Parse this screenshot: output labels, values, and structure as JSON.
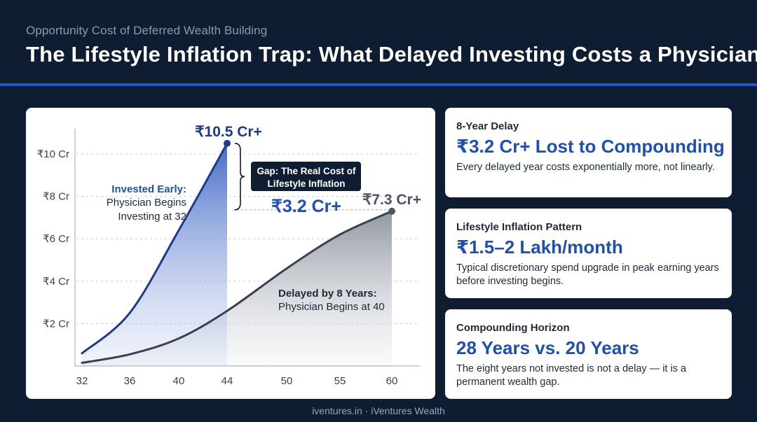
{
  "header": {
    "kicker": "Opportunity Cost of Deferred Wealth Building",
    "title": "The Lifestyle Inflation Trap: What Delayed Investing Costs a Physician"
  },
  "chart_data": {
    "type": "area",
    "x_ticks": [
      "32",
      "36",
      "40",
      "44",
      "50",
      "55",
      "60"
    ],
    "y_ticks": [
      {
        "value": 10,
        "label": "₹10 Cr"
      },
      {
        "value": 8,
        "label": "₹8 Cr"
      },
      {
        "value": 6,
        "label": "₹6 Cr"
      },
      {
        "value": 4,
        "label": "₹4 Cr"
      },
      {
        "value": 2,
        "label": "₹2 Cr"
      }
    ],
    "series": [
      {
        "label_title": "Invested Early:",
        "label_lines": [
          "Physician Begins",
          "Investing at 32"
        ],
        "end_label": "₹10.5 Cr+",
        "color": "#1e3a8a",
        "points": [
          [
            32,
            0.6
          ],
          [
            36,
            2.5
          ],
          [
            40,
            6.4
          ],
          [
            44,
            10.5
          ]
        ]
      },
      {
        "label_title": "Delayed by 8 Years:",
        "label_lines": [
          "Physician Begins at 40"
        ],
        "end_label": "₹7.3 Cr+",
        "color": "#374151",
        "points": [
          [
            32,
            0.15
          ],
          [
            36,
            0.55
          ],
          [
            40,
            1.3
          ],
          [
            44,
            2.6
          ],
          [
            50,
            4.6
          ],
          [
            55,
            6.2
          ],
          [
            60,
            7.3
          ]
        ]
      }
    ],
    "gap": {
      "box_lines": [
        "Gap: The Real Cost of",
        "Lifestyle Inflation"
      ],
      "value": "₹3.2 Cr+"
    },
    "colors": {
      "early": "#1e3a8a",
      "delayed": "#374151",
      "accent": "#1e4fb5"
    }
  },
  "cards": [
    {
      "label": "8-Year Delay",
      "value": "₹3.2 Cr+ Lost to Compounding",
      "desc": "Every delayed year costs exponentially more, not linearly."
    },
    {
      "label": "Lifestyle Inflation Pattern",
      "value": "₹1.5–2 Lakh/month",
      "desc": "Typical discretionary spend upgrade in peak earning years before investing begins."
    },
    {
      "label": "Compounding Horizon",
      "value": "28 Years vs. 20 Years",
      "desc": "The eight years not invested is not a delay — it is a permanent wealth gap."
    }
  ],
  "footer": "iventures.in · iVentures Wealth"
}
